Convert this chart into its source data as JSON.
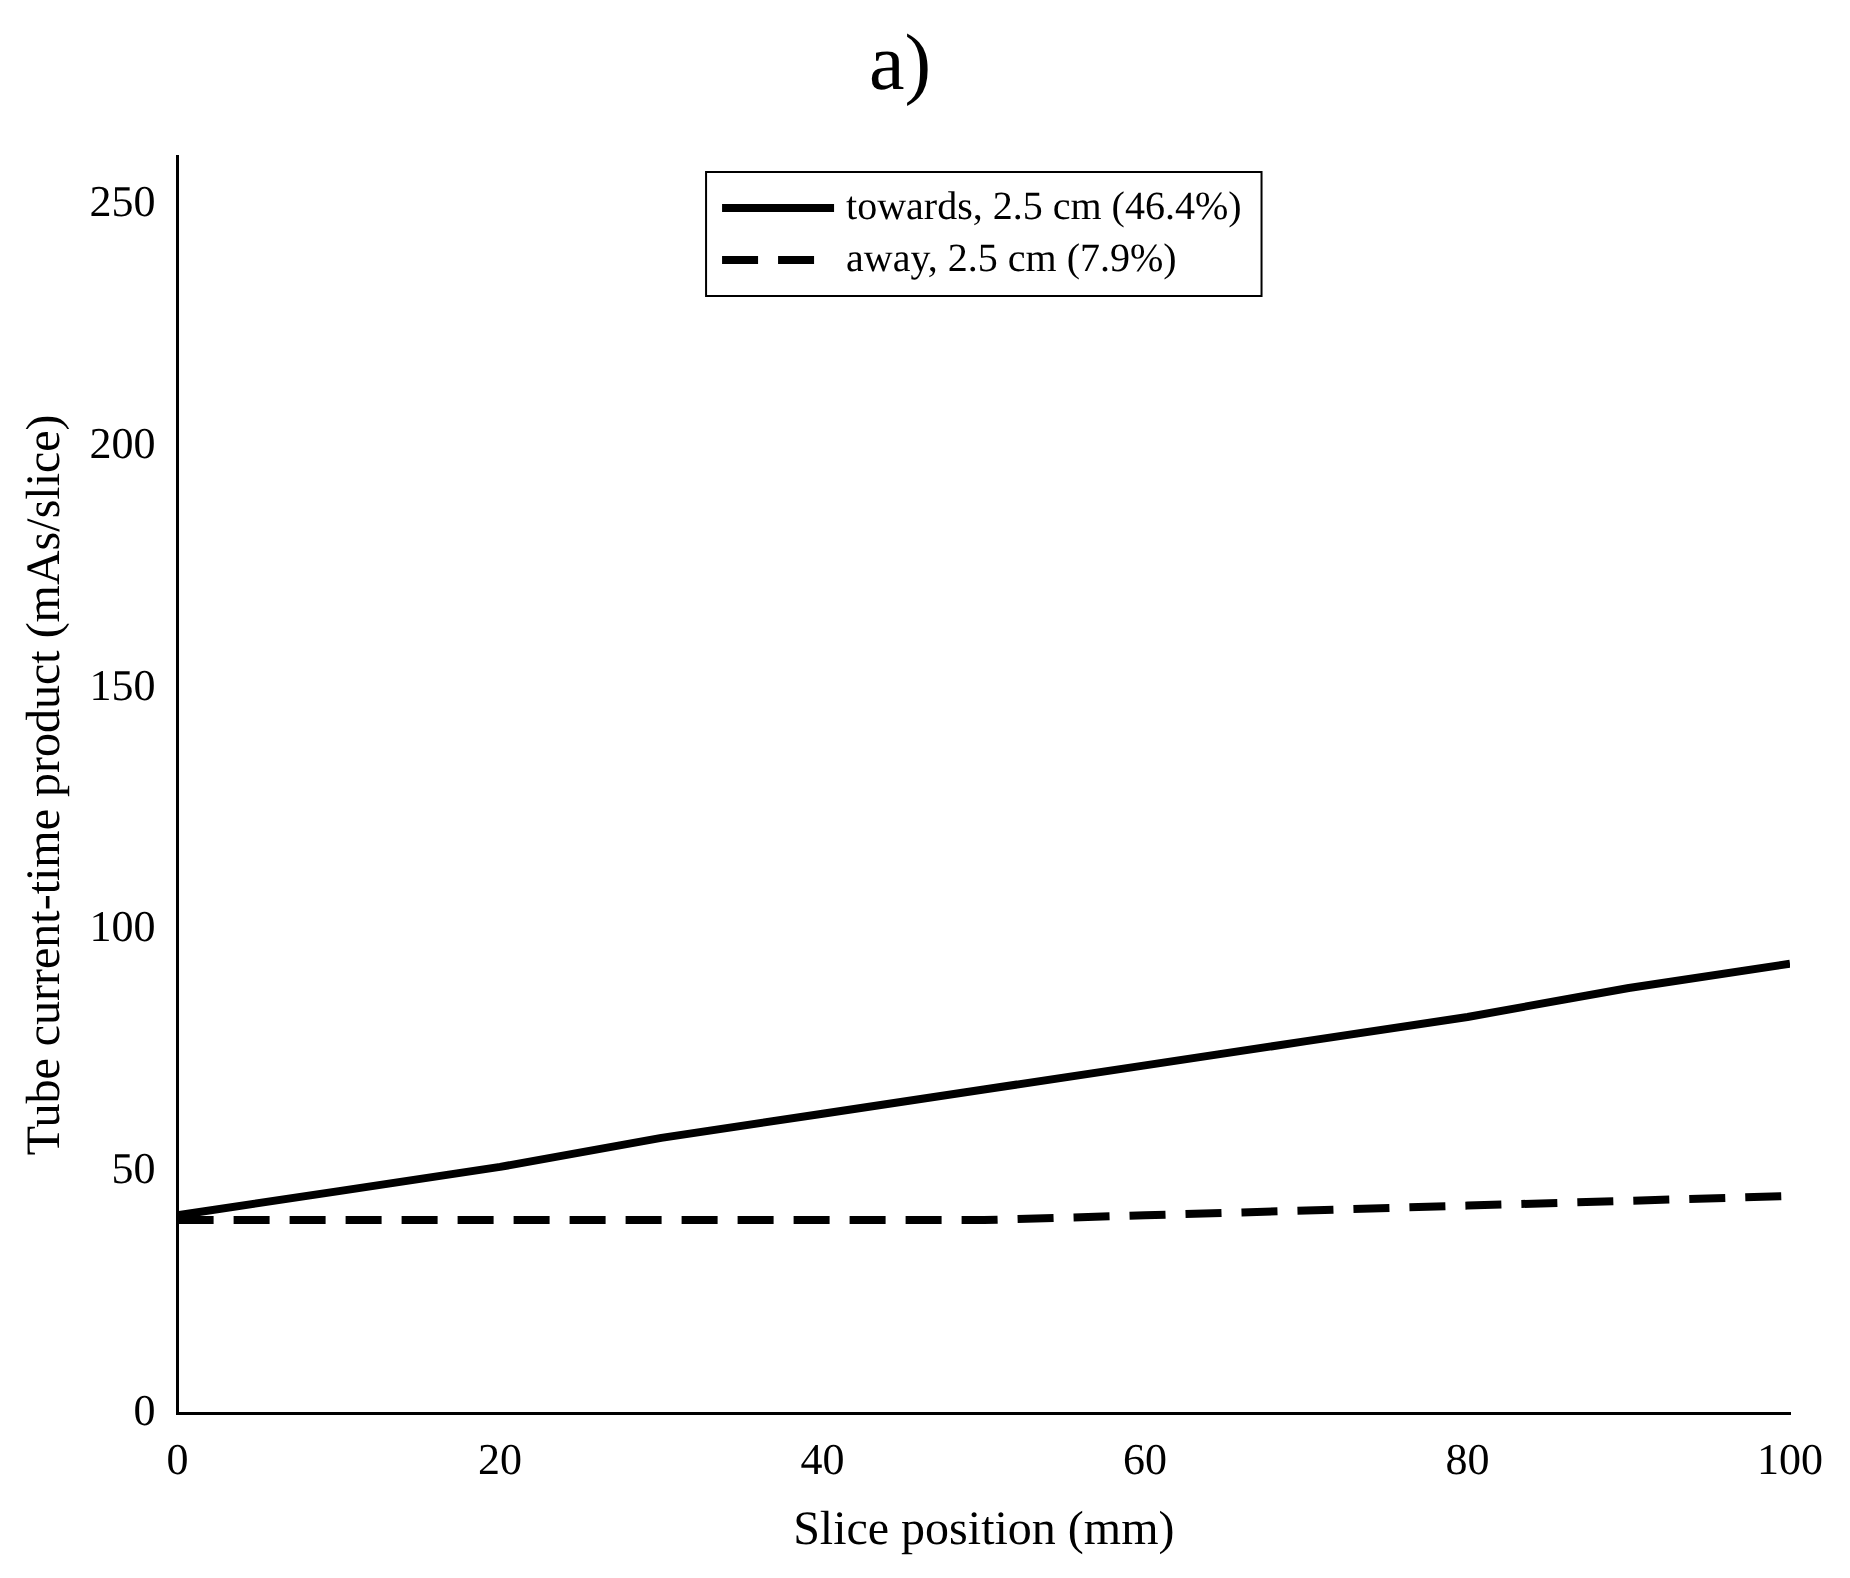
{
  "chart_data": {
    "type": "line",
    "title": "a)",
    "xlabel": "Slice position (mm)",
    "ylabel": "Tube current-time product (mAs/slice)",
    "xlim": [
      0,
      100
    ],
    "xticks": [
      0,
      20,
      40,
      60,
      80,
      100
    ],
    "ylim": [
      0,
      260
    ],
    "yticks": [
      0,
      50,
      100,
      150,
      200,
      250
    ],
    "grid": false,
    "legend": "top",
    "marker": "none",
    "series": [
      {
        "name": "towards, 2.5 cm (46.4%)",
        "color": "#000000",
        "line_style": "solid",
        "x": [
          0,
          10,
          20,
          30,
          40,
          50,
          60,
          70,
          80,
          90,
          100
        ],
        "values": [
          41,
          46,
          51,
          57,
          62,
          67,
          72,
          77,
          82,
          88,
          93
        ]
      },
      {
        "name": "away, 2.5 cm (7.9%)",
        "color": "#000000",
        "line_style": "dashed",
        "x": [
          0,
          10,
          20,
          30,
          40,
          50,
          60,
          70,
          80,
          90,
          100
        ],
        "values": [
          40,
          40,
          40,
          40,
          40,
          40,
          41,
          42,
          43,
          44,
          45
        ]
      }
    ]
  }
}
